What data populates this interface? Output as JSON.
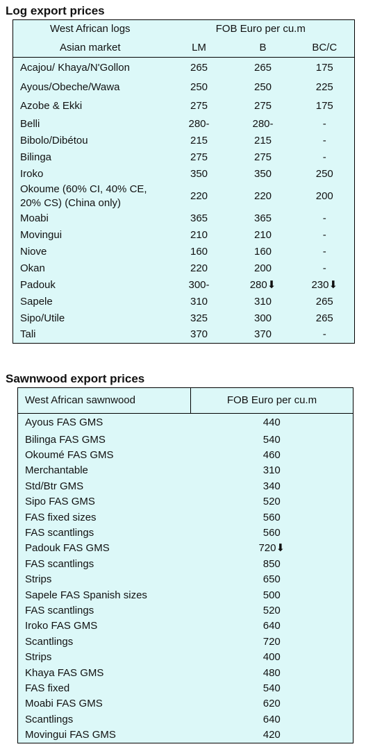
{
  "log_section": {
    "title": "Log export prices",
    "header": [
      "West African logs",
      "FOB Euro per cu.m"
    ],
    "subheader": [
      "Asian market",
      "LM",
      "B",
      "BC/C"
    ],
    "rows": [
      [
        "Acajou/ Khaya/N'Gollon",
        "265",
        "265",
        "175"
      ],
      [
        "Ayous/Obeche/Wawa",
        "250",
        "250",
        "225"
      ],
      [
        "Azobe & Ekki",
        "275",
        "275",
        "175"
      ],
      [
        "Belli",
        "280-",
        "280-",
        "-"
      ],
      [
        "Bibolo/Dibétou",
        "215",
        "215",
        "-"
      ],
      [
        "Bilinga",
        "275",
        "275",
        "-"
      ],
      [
        "Iroko",
        "350",
        "350",
        "250"
      ],
      [
        "Okoume (60% CI, 40% CE, 20% CS) (China only)",
        "220",
        "220",
        "200"
      ],
      [
        "Moabi",
        "365",
        "365",
        "-"
      ],
      [
        "Movingui",
        "210",
        "210",
        "-"
      ],
      [
        "Niove",
        "160",
        "160",
        "-"
      ],
      [
        "Okan",
        "220",
        "200",
        "-"
      ],
      [
        "Padouk",
        "300-",
        "280⬇",
        "230⬇"
      ],
      [
        "Sapele",
        "310",
        "310",
        "265"
      ],
      [
        "Sipo/Utile",
        "325",
        "300",
        "265"
      ],
      [
        "Tali",
        "370",
        "370",
        "-"
      ]
    ]
  },
  "sawn_section": {
    "title": "Sawnwood export prices",
    "header": [
      "West African sawnwood",
      "FOB Euro per cu.m"
    ],
    "rows": [
      [
        "Ayous FAS GMS",
        "440"
      ],
      [
        "Bilinga FAS GMS",
        "540"
      ],
      [
        "Okoumé FAS GMS",
        "460"
      ],
      [
        "Merchantable",
        "310"
      ],
      [
        "Std/Btr GMS",
        "340"
      ],
      [
        "Sipo FAS GMS",
        "520"
      ],
      [
        "FAS fixed sizes",
        "560"
      ],
      [
        "FAS scantlings",
        "560"
      ],
      [
        "Padouk FAS GMS",
        "720⬇"
      ],
      [
        "FAS scantlings",
        "850"
      ],
      [
        "Strips",
        "650"
      ],
      [
        "Sapele FAS Spanish sizes",
        "500"
      ],
      [
        "FAS scantlings",
        "520"
      ],
      [
        "Iroko FAS GMS",
        "640"
      ],
      [
        "Scantlings",
        "720"
      ],
      [
        "Strips",
        "400"
      ],
      [
        "Khaya FAS GMS",
        "480"
      ],
      [
        "FAS fixed",
        "540"
      ],
      [
        "Moabi FAS GMS",
        "620"
      ],
      [
        "Scantlings",
        "640"
      ],
      [
        "Movingui FAS GMS",
        "420"
      ]
    ]
  }
}
